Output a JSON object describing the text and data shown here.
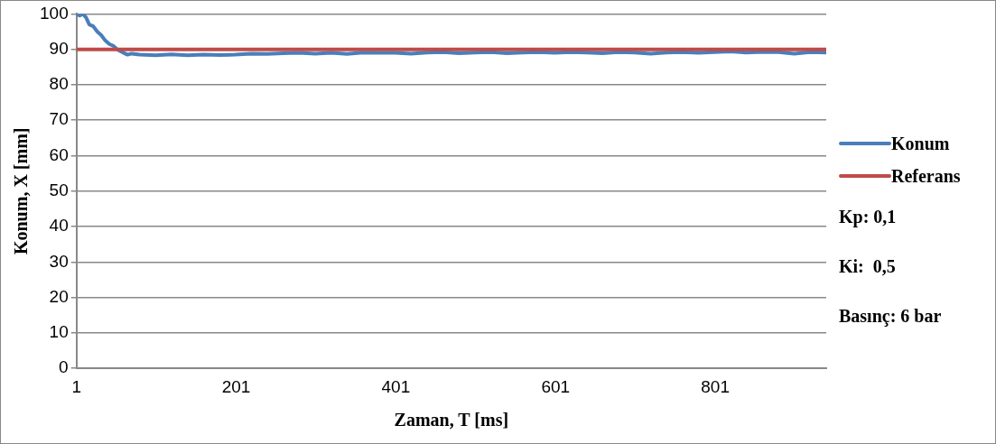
{
  "chart_data": {
    "type": "line",
    "xlabel": "Zaman, T [ms]",
    "ylabel": "Konum, X [mm]",
    "xlim": [
      1,
      940
    ],
    "xticks": [
      1,
      201,
      401,
      601,
      801
    ],
    "ylim": [
      0,
      100
    ],
    "yticks": [
      0,
      10,
      20,
      30,
      40,
      50,
      60,
      70,
      80,
      90,
      100
    ],
    "grid": "y",
    "legend": "right",
    "marker": "none",
    "line_style": "solid",
    "series": [
      {
        "name": "Konum",
        "color": "#4a7ebb",
        "x": [
          1,
          5,
          9,
          13,
          17,
          22,
          27,
          32,
          37,
          42,
          47,
          52,
          56,
          60,
          65,
          70,
          80,
          100,
          120,
          140,
          160,
          180,
          200,
          220,
          240,
          260,
          280,
          300,
          320,
          340,
          360,
          380,
          400,
          420,
          440,
          460,
          480,
          500,
          520,
          540,
          560,
          580,
          600,
          620,
          640,
          660,
          680,
          700,
          720,
          740,
          760,
          780,
          800,
          820,
          840,
          860,
          880,
          900,
          920,
          940
        ],
        "values": [
          100,
          99.5,
          100,
          99,
          97,
          96.5,
          95,
          94,
          92.5,
          91.5,
          91,
          90,
          89.5,
          89,
          88.5,
          88.8,
          88.5,
          88.3,
          88.6,
          88.3,
          88.5,
          88.4,
          88.5,
          88.8,
          88.7,
          88.9,
          89,
          88.8,
          89,
          88.7,
          89.1,
          89,
          89,
          88.8,
          89.1,
          89.2,
          88.9,
          89.1,
          89.2,
          88.9,
          89.1,
          89.2,
          89,
          89.2,
          89.1,
          88.9,
          89.2,
          89.1,
          88.8,
          89.1,
          89.2,
          89,
          89.2,
          89.4,
          89.1,
          89.3,
          89.2,
          88.8,
          89.2,
          89.1
        ]
      },
      {
        "name": "Referans",
        "color": "#be4b48",
        "x": [
          1,
          940
        ],
        "values": [
          90,
          90
        ]
      }
    ],
    "annotations": [
      "Kp: 0,1",
      "Ki:  0,5",
      "Basınç: 6 bar"
    ]
  }
}
